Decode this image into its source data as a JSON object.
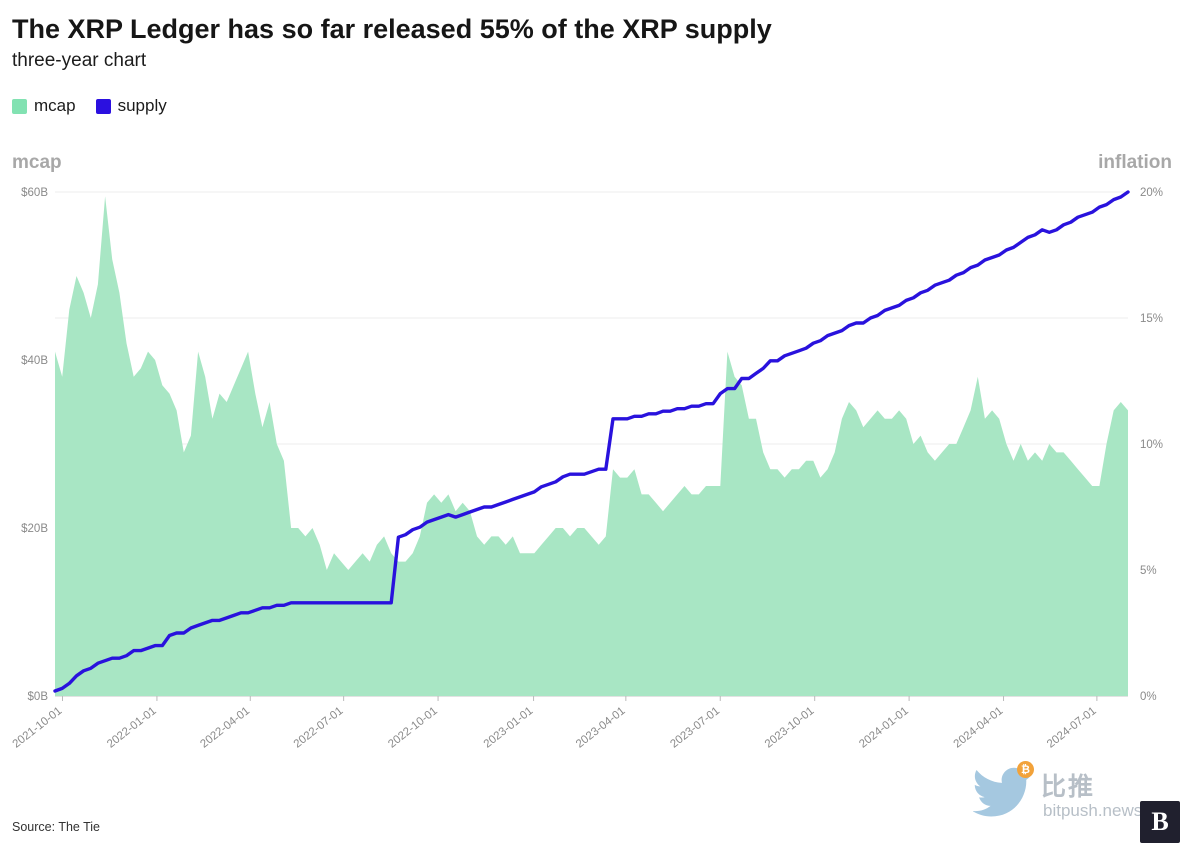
{
  "header": {
    "title": "The XRP Ledger has so far released 55% of the XRP supply",
    "subtitle": "three-year chart"
  },
  "legend": [
    {
      "label": "mcap",
      "color": "#82e2b2"
    },
    {
      "label": "supply",
      "color": "#2b10e0"
    }
  ],
  "source": "Source: The Tie",
  "watermark": {
    "cn": "比推",
    "site": "bitpush.news",
    "logo_letter": "B",
    "bitcoin": "₿"
  },
  "chart_data": {
    "type": "area",
    "title": "The XRP Ledger has so far released 55% of the XRP supply",
    "subtitle": "three-year chart",
    "grid": "horizontal",
    "legend_position": "top-left",
    "left_axis": {
      "label": "mcap",
      "ticks": [
        "$0B",
        "$20B",
        "$40B",
        "$60B"
      ],
      "min": 0,
      "max": 60
    },
    "right_axis": {
      "label": "inflation",
      "ticks": [
        "0%",
        "5%",
        "10%",
        "15%",
        "20%"
      ],
      "min": 0,
      "max": 20
    },
    "x_ticks": [
      {
        "label": "2021-10-01",
        "pos": 0.007
      },
      {
        "label": "2022-01-01",
        "pos": 0.095
      },
      {
        "label": "2022-04-01",
        "pos": 0.182
      },
      {
        "label": "2022-07-01",
        "pos": 0.269
      },
      {
        "label": "2022-10-01",
        "pos": 0.357
      },
      {
        "label": "2023-01-01",
        "pos": 0.446
      },
      {
        "label": "2023-04-01",
        "pos": 0.532
      },
      {
        "label": "2023-07-01",
        "pos": 0.62
      },
      {
        "label": "2023-10-01",
        "pos": 0.708
      },
      {
        "label": "2024-01-01",
        "pos": 0.796
      },
      {
        "label": "2024-04-01",
        "pos": 0.884
      },
      {
        "label": "2024-07-01",
        "pos": 0.971
      }
    ],
    "x_range": [
      "2021-09-24",
      "2024-07-31"
    ],
    "series": [
      {
        "name": "mcap",
        "type": "area",
        "axis": "left",
        "color": "#a8e6c4",
        "unit": "$B",
        "values": [
          41,
          38,
          46,
          50,
          48,
          45,
          49,
          59.5,
          52,
          48,
          42,
          38,
          39,
          41,
          40,
          37,
          36,
          34,
          29,
          31,
          41,
          38,
          33,
          36,
          35,
          37,
          39,
          41,
          36,
          32,
          35,
          30,
          28,
          20,
          20,
          19,
          20,
          18,
          15,
          17,
          16,
          15,
          16,
          17,
          16,
          18,
          19,
          17,
          16,
          16,
          17,
          19,
          23,
          24,
          23,
          24,
          22,
          23,
          22,
          19,
          18,
          19,
          19,
          18,
          19,
          17,
          17,
          17,
          18,
          19,
          20,
          20,
          19,
          20,
          20,
          19,
          18,
          19,
          27,
          26,
          26,
          27,
          24,
          24,
          23,
          22,
          23,
          24,
          25,
          24,
          24,
          25,
          25,
          25,
          41,
          38,
          37,
          33,
          33,
          29,
          27,
          27,
          26,
          27,
          27,
          28,
          28,
          26,
          27,
          29,
          33,
          35,
          34,
          32,
          33,
          34,
          33,
          33,
          34,
          33,
          30,
          31,
          29,
          28,
          29,
          30,
          30,
          32,
          34,
          38,
          33,
          34,
          33,
          30,
          28,
          30,
          28,
          29,
          28,
          30,
          29,
          29,
          28,
          27,
          26,
          25,
          25,
          30,
          34,
          35,
          34
        ]
      },
      {
        "name": "supply",
        "type": "line",
        "axis": "right",
        "color": "#2912dd",
        "unit": "%",
        "values": [
          0.2,
          0.3,
          0.5,
          0.8,
          1.0,
          1.1,
          1.3,
          1.4,
          1.5,
          1.5,
          1.6,
          1.8,
          1.8,
          1.9,
          2.0,
          2.0,
          2.4,
          2.5,
          2.5,
          2.7,
          2.8,
          2.9,
          3.0,
          3.0,
          3.1,
          3.2,
          3.3,
          3.3,
          3.4,
          3.5,
          3.5,
          3.6,
          3.6,
          3.7,
          3.7,
          3.7,
          3.7,
          3.7,
          3.7,
          3.7,
          3.7,
          3.7,
          3.7,
          3.7,
          3.7,
          3.7,
          3.7,
          3.7,
          6.3,
          6.4,
          6.6,
          6.7,
          6.9,
          7.0,
          7.1,
          7.2,
          7.1,
          7.2,
          7.3,
          7.4,
          7.5,
          7.5,
          7.6,
          7.7,
          7.8,
          7.9,
          8.0,
          8.1,
          8.3,
          8.4,
          8.5,
          8.7,
          8.8,
          8.8,
          8.8,
          8.9,
          9.0,
          9.0,
          11.0,
          11.0,
          11.0,
          11.1,
          11.1,
          11.2,
          11.2,
          11.3,
          11.3,
          11.4,
          11.4,
          11.5,
          11.5,
          11.6,
          11.6,
          12.0,
          12.2,
          12.2,
          12.6,
          12.6,
          12.8,
          13.0,
          13.3,
          13.3,
          13.5,
          13.6,
          13.7,
          13.8,
          14.0,
          14.1,
          14.3,
          14.4,
          14.5,
          14.7,
          14.8,
          14.8,
          15.0,
          15.1,
          15.3,
          15.4,
          15.5,
          15.7,
          15.8,
          16.0,
          16.1,
          16.3,
          16.4,
          16.5,
          16.7,
          16.8,
          17.0,
          17.1,
          17.3,
          17.4,
          17.5,
          17.7,
          17.8,
          18.0,
          18.2,
          18.3,
          18.5,
          18.4,
          18.5,
          18.7,
          18.8,
          19.0,
          19.1,
          19.2,
          19.4,
          19.5,
          19.7,
          19.8,
          20.0
        ]
      }
    ]
  }
}
